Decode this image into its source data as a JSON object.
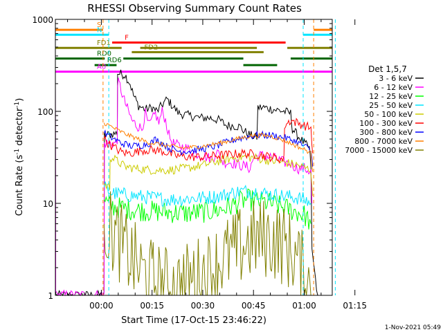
{
  "chart_data": {
    "type": "line",
    "title": "RHESSI Observing Summary Count Rates",
    "xlabel": "Start Time (17-Oct-15 23:46:22)",
    "ylabel_main": "Count Rate (s",
    "ylabel_sup": "-1",
    "ylabel_mid": " detector",
    "ylabel_sup2": "-1",
    "ylabel_end": ")",
    "yscale": "log",
    "ylim": [
      1,
      1000
    ],
    "xlim_minutes": [
      -13.6,
      68.3
    ],
    "y_ticks": [
      "1",
      "10",
      "100",
      "1000"
    ],
    "x_ticks": [
      "00:00",
      "00:15",
      "00:30",
      "00:45",
      "01:00",
      "01:15"
    ],
    "timestamp": "1-Nov-2021 05:49",
    "legend_title": "Det 1,5,7",
    "legend_position": "right",
    "vertical_markers": [
      {
        "t": 0.5,
        "color": "#ff7f00"
      },
      {
        "t": 2.2,
        "color": "#00e5ff"
      },
      {
        "t": 59.7,
        "color": "#00e5ff"
      },
      {
        "t": 62.8,
        "color": "#ff7f00"
      },
      {
        "t": 69.2,
        "color": "#00e5ff"
      }
    ],
    "flags": [
      {
        "label": "S",
        "color": "#ff7f00",
        "value": 770,
        "segments": [
          [
            -13.6,
            0.5
          ],
          [
            62.8,
            70.0
          ]
        ]
      },
      {
        "label": "N",
        "color": "#00e5ff",
        "value": 680,
        "segments": [
          [
            -13.6,
            2.2
          ],
          [
            59.7,
            69.2
          ]
        ]
      },
      {
        "label": "F",
        "color": "#ff0000",
        "value": 560,
        "segments": [
          [
            3.2,
            54.5
          ]
        ]
      },
      {
        "label": "FD1",
        "color": "#808000",
        "value": 490,
        "segments": [
          [
            -13.6,
            6.0
          ],
          [
            11.5,
            46.0
          ],
          [
            55.0,
            70.0
          ]
        ]
      },
      {
        "label": "FD2",
        "color": "#808000",
        "value": 440,
        "segments": [
          [
            9.0,
            48.0
          ]
        ]
      },
      {
        "label": "RD0",
        "color": "#006400",
        "value": 375,
        "segments": [
          [
            -13.6,
            1.0
          ],
          [
            6.5,
            42.0
          ],
          [
            56.0,
            70.0
          ]
        ]
      },
      {
        "label": "RD6",
        "color": "#006400",
        "value": 318,
        "segments": [
          [
            -2.0,
            4.5
          ],
          [
            42.0,
            52.0
          ]
        ]
      },
      {
        "label": "A0",
        "color": "#ff00ff",
        "value": 270,
        "segments": [
          [
            -13.6,
            70.0
          ]
        ]
      }
    ],
    "series": [
      {
        "name": "3 - 6 keV",
        "color": "#000000",
        "noise": 0.05,
        "points": [
          [
            -13.6,
            250
          ],
          [
            -13.5,
            1
          ],
          [
            0.8,
            1
          ],
          [
            0.9,
            55
          ],
          [
            4.7,
            58
          ],
          [
            4.8,
            260
          ],
          [
            7.0,
            250
          ],
          [
            8.5,
            200
          ],
          [
            9.5,
            150
          ],
          [
            11,
            115
          ],
          [
            13,
            105
          ],
          [
            15,
            110
          ],
          [
            16.5,
            100
          ],
          [
            18.5,
            125
          ],
          [
            19.5,
            135
          ],
          [
            21,
            115
          ],
          [
            23,
            95
          ],
          [
            26,
            90
          ],
          [
            29,
            85
          ],
          [
            32,
            85
          ],
          [
            35,
            80
          ],
          [
            37,
            70
          ],
          [
            39,
            70
          ],
          [
            41,
            68
          ],
          [
            42,
            62
          ],
          [
            44,
            55
          ],
          [
            46,
            52
          ],
          [
            46.3,
            110
          ],
          [
            48,
            110
          ],
          [
            51,
            105
          ],
          [
            54,
            100
          ],
          [
            56,
            95
          ],
          [
            56.5,
            65
          ],
          [
            58,
            55
          ],
          [
            60,
            45
          ],
          [
            61.5,
            40
          ],
          [
            62,
            25
          ],
          [
            62.3,
            3
          ],
          [
            64,
            1
          ]
        ]
      },
      {
        "name": "6 - 12 keV",
        "color": "#ff00ff",
        "noise": 0.06,
        "points": [
          [
            -13.6,
            240
          ],
          [
            -13.5,
            1
          ],
          [
            0.8,
            1
          ],
          [
            0.9,
            45
          ],
          [
            4.7,
            45
          ],
          [
            4.8,
            210
          ],
          [
            5.5,
            190
          ],
          [
            6.5,
            140
          ],
          [
            8,
            100
          ],
          [
            9,
            80
          ],
          [
            10.5,
            70
          ],
          [
            12,
            65
          ],
          [
            13,
            95
          ],
          [
            14,
            70
          ],
          [
            15,
            80
          ],
          [
            16,
            95
          ],
          [
            17,
            75
          ],
          [
            18,
            100
          ],
          [
            19,
            80
          ],
          [
            20,
            55
          ],
          [
            21,
            45
          ],
          [
            23,
            42
          ],
          [
            25,
            40
          ],
          [
            28,
            35
          ],
          [
            31,
            32
          ],
          [
            33,
            30
          ],
          [
            34,
            38
          ],
          [
            36,
            28
          ],
          [
            38,
            28
          ],
          [
            41,
            26
          ],
          [
            43,
            25
          ],
          [
            44,
            24
          ],
          [
            45,
            31
          ],
          [
            46,
            33
          ],
          [
            48,
            33
          ],
          [
            50,
            32
          ],
          [
            52,
            30
          ],
          [
            54,
            28
          ],
          [
            56,
            27
          ],
          [
            58,
            24
          ],
          [
            60,
            24
          ],
          [
            62,
            22
          ],
          [
            62.3,
            10
          ]
        ]
      },
      {
        "name": "12 - 25 keV",
        "color": "#00ff00",
        "noise": 0.12,
        "points": [
          [
            0.8,
            11
          ],
          [
            2,
            9.5
          ],
          [
            5,
            9
          ],
          [
            10,
            8.5
          ],
          [
            15,
            8.2
          ],
          [
            20,
            8
          ],
          [
            25,
            7.8
          ],
          [
            30,
            8
          ],
          [
            35,
            8.5
          ],
          [
            39,
            9.5
          ],
          [
            41,
            10.5
          ],
          [
            43,
            11
          ],
          [
            46,
            10.5
          ],
          [
            50,
            10
          ],
          [
            54,
            9
          ],
          [
            58,
            8
          ],
          [
            60,
            7.5
          ],
          [
            62,
            6
          ]
        ]
      },
      {
        "name": "25 - 50 keV",
        "color": "#00e5ff",
        "noise": 0.08,
        "points": [
          [
            0.8,
            15
          ],
          [
            3,
            13
          ],
          [
            6,
            12.5
          ],
          [
            10,
            12
          ],
          [
            15,
            11.5
          ],
          [
            20,
            11
          ],
          [
            25,
            11.2
          ],
          [
            30,
            11.5
          ],
          [
            35,
            12
          ],
          [
            39,
            13
          ],
          [
            41,
            13.5
          ],
          [
            45,
            13.5
          ],
          [
            50,
            12.5
          ],
          [
            54,
            12
          ],
          [
            58,
            11.5
          ],
          [
            60,
            11
          ],
          [
            62,
            10
          ]
        ]
      },
      {
        "name": "50 - 100 keV",
        "color": "#cccc00",
        "noise": 0.05,
        "points": [
          [
            0.8,
            16
          ],
          [
            2.5,
            15
          ],
          [
            2.6,
            32
          ],
          [
            4,
            30
          ],
          [
            7,
            25
          ],
          [
            10,
            24
          ],
          [
            15,
            23
          ],
          [
            20,
            23
          ],
          [
            25,
            24
          ],
          [
            30,
            26
          ],
          [
            35,
            29
          ],
          [
            39,
            31
          ],
          [
            42,
            32
          ],
          [
            46,
            31
          ],
          [
            50,
            29
          ],
          [
            54,
            28
          ],
          [
            58,
            26
          ],
          [
            60,
            24.5
          ],
          [
            62,
            23
          ],
          [
            62.5,
            12
          ]
        ]
      },
      {
        "name": "100 - 300 keV",
        "color": "#ff0000",
        "noise": 0.05,
        "points": [
          [
            0.8,
            50
          ],
          [
            2,
            45
          ],
          [
            4,
            40
          ],
          [
            6,
            36
          ],
          [
            8,
            35
          ],
          [
            10,
            36
          ],
          [
            12,
            38
          ],
          [
            15,
            38
          ],
          [
            18,
            37
          ],
          [
            22,
            33
          ],
          [
            26,
            32
          ],
          [
            30,
            32
          ],
          [
            34,
            33
          ],
          [
            38,
            34
          ],
          [
            42,
            35
          ],
          [
            46,
            34
          ],
          [
            50,
            32
          ],
          [
            54,
            30
          ],
          [
            54.2,
            70
          ],
          [
            56,
            80
          ],
          [
            58,
            75
          ],
          [
            60,
            70
          ],
          [
            62,
            66
          ],
          [
            62.5,
            35
          ]
        ]
      },
      {
        "name": "300 - 800 keV",
        "color": "#0000ff",
        "noise": 0.04,
        "points": [
          [
            0.8,
            58
          ],
          [
            3,
            52
          ],
          [
            6,
            45
          ],
          [
            9,
            42
          ],
          [
            12,
            43
          ],
          [
            15,
            46
          ],
          [
            16,
            50
          ],
          [
            18,
            45
          ],
          [
            20,
            40
          ],
          [
            23,
            37
          ],
          [
            26,
            37
          ],
          [
            30,
            39
          ],
          [
            34,
            42
          ],
          [
            37,
            46
          ],
          [
            40,
            50
          ],
          [
            43,
            53
          ],
          [
            46,
            55
          ],
          [
            50,
            55
          ],
          [
            54,
            52
          ],
          [
            57,
            48
          ],
          [
            59,
            44
          ],
          [
            61,
            40
          ],
          [
            62,
            37
          ],
          [
            62.5,
            25
          ]
        ]
      },
      {
        "name": "800 - 7000 keV",
        "color": "#ff7f00",
        "noise": 0.025,
        "points": [
          [
            0.8,
            75
          ],
          [
            3,
            68
          ],
          [
            5,
            62
          ],
          [
            8,
            55
          ],
          [
            11,
            50
          ],
          [
            14,
            46
          ],
          [
            17,
            44
          ],
          [
            20,
            42
          ],
          [
            24,
            40
          ],
          [
            28,
            41
          ],
          [
            32,
            43
          ],
          [
            36,
            46
          ],
          [
            40,
            50
          ],
          [
            44,
            54
          ],
          [
            47,
            55
          ],
          [
            50,
            54
          ],
          [
            53,
            50
          ],
          [
            56,
            45
          ],
          [
            59,
            40
          ],
          [
            61,
            37
          ],
          [
            62,
            35
          ],
          [
            62.5,
            22
          ]
        ]
      },
      {
        "name": "7000 - 15000 keV",
        "color": "#808000",
        "noise": 0.45,
        "points": [
          [
            0.8,
            6
          ],
          [
            3,
            5
          ],
          [
            6,
            3.5
          ],
          [
            9,
            2.5
          ],
          [
            12,
            1.8
          ],
          [
            15,
            1.5
          ],
          [
            18,
            1.3
          ],
          [
            21,
            1.2
          ],
          [
            24,
            1.3
          ],
          [
            27,
            1.5
          ],
          [
            30,
            1.7
          ],
          [
            33,
            2.0
          ],
          [
            36,
            2.5
          ],
          [
            39,
            3.0
          ],
          [
            42,
            3.5
          ],
          [
            45,
            4.0
          ],
          [
            48,
            4.2
          ],
          [
            51,
            4.0
          ],
          [
            54,
            3.5
          ],
          [
            57,
            2.8
          ],
          [
            59,
            2.0
          ],
          [
            61,
            1.4
          ],
          [
            62.3,
            1
          ]
        ]
      }
    ]
  }
}
